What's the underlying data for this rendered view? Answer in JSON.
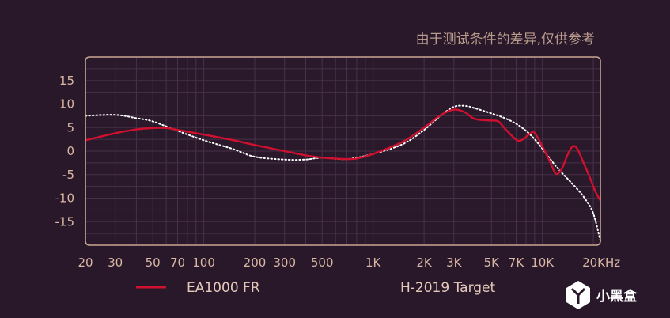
{
  "disclaimer": "由于测试条件的差异,仅供参考",
  "watermark": {
    "text": "小黑盒",
    "icon": "xiaoheihe-logo-icon"
  },
  "colors": {
    "background": "#281829",
    "plot_bg": "#2a192b",
    "frame": "#c9a694",
    "grid": "#47314a",
    "ea1000": "#d0102e",
    "target": "#ffffff",
    "text": "#d9b7a4"
  },
  "chart_data": {
    "type": "line",
    "title": "",
    "xlabel": "",
    "ylabel": "",
    "x_scale": "log",
    "xlim": [
      20,
      22000
    ],
    "ylim": [
      -20,
      20
    ],
    "x_ticks": [
      {
        "value": 20,
        "label": "20"
      },
      {
        "value": 30,
        "label": "30"
      },
      {
        "value": 50,
        "label": "50"
      },
      {
        "value": 70,
        "label": "70"
      },
      {
        "value": 100,
        "label": "100"
      },
      {
        "value": 200,
        "label": "200"
      },
      {
        "value": 300,
        "label": "300"
      },
      {
        "value": 500,
        "label": "500"
      },
      {
        "value": 1000,
        "label": "1K"
      },
      {
        "value": 2000,
        "label": "2K"
      },
      {
        "value": 3000,
        "label": "3K"
      },
      {
        "value": 5000,
        "label": "5K"
      },
      {
        "value": 7000,
        "label": "7K"
      },
      {
        "value": 10000,
        "label": "10K"
      },
      {
        "value": 20000,
        "label": "20KHz"
      }
    ],
    "y_ticks": [
      {
        "value": 15,
        "label": "15"
      },
      {
        "value": 10,
        "label": "10"
      },
      {
        "value": 5,
        "label": "5"
      },
      {
        "value": 0,
        "label": "0"
      },
      {
        "value": -5,
        "label": "-5"
      },
      {
        "value": -10,
        "label": "-10"
      },
      {
        "value": -15,
        "label": "-15"
      }
    ],
    "grid": true,
    "legend_position": "bottom",
    "series": [
      {
        "name": "EA1000 FR",
        "color": "#d0102e",
        "style": "solid",
        "points": [
          [
            20,
            2.3
          ],
          [
            30,
            3.8
          ],
          [
            40,
            4.6
          ],
          [
            50,
            4.9
          ],
          [
            60,
            4.9
          ],
          [
            70,
            4.5
          ],
          [
            100,
            3.5
          ],
          [
            150,
            2.3
          ],
          [
            200,
            1.3
          ],
          [
            300,
            0
          ],
          [
            400,
            -0.9
          ],
          [
            500,
            -1.4
          ],
          [
            600,
            -1.6
          ],
          [
            700,
            -1.7
          ],
          [
            800,
            -1.6
          ],
          [
            1000,
            -0.6
          ],
          [
            1500,
            2
          ],
          [
            2000,
            5
          ],
          [
            2500,
            7.6
          ],
          [
            3000,
            8.8
          ],
          [
            3500,
            8.2
          ],
          [
            4000,
            6.8
          ],
          [
            5000,
            6.5
          ],
          [
            5500,
            6.3
          ],
          [
            6000,
            4.8
          ],
          [
            7000,
            2.4
          ],
          [
            7500,
            2.3
          ],
          [
            8000,
            3
          ],
          [
            8500,
            3.8
          ],
          [
            9000,
            3.9
          ],
          [
            10000,
            1
          ],
          [
            11000,
            -2
          ],
          [
            12000,
            -4.8
          ],
          [
            13000,
            -3.8
          ],
          [
            14000,
            -1
          ],
          [
            15000,
            0.9
          ],
          [
            16000,
            0.6
          ],
          [
            17500,
            -2.5
          ],
          [
            19000,
            -5.5
          ],
          [
            20500,
            -8.5
          ],
          [
            22000,
            -10.5
          ]
        ]
      },
      {
        "name": "H-2019 Target",
        "color": "#ffffff",
        "style": "dotted",
        "points": [
          [
            20,
            7.5
          ],
          [
            30,
            7.7
          ],
          [
            40,
            7
          ],
          [
            50,
            6.3
          ],
          [
            70,
            4.3
          ],
          [
            100,
            2.3
          ],
          [
            150,
            0.4
          ],
          [
            200,
            -1.2
          ],
          [
            300,
            -1.8
          ],
          [
            400,
            -1.8
          ],
          [
            500,
            -1.4
          ],
          [
            700,
            -1.7
          ],
          [
            1000,
            -0.6
          ],
          [
            1500,
            1.5
          ],
          [
            2000,
            4.5
          ],
          [
            2500,
            7.5
          ],
          [
            3000,
            9.4
          ],
          [
            3500,
            9.6
          ],
          [
            4000,
            9.1
          ],
          [
            5000,
            8
          ],
          [
            6000,
            7
          ],
          [
            7000,
            5.8
          ],
          [
            8000,
            4.3
          ],
          [
            9000,
            2.5
          ],
          [
            10000,
            0.5
          ],
          [
            12000,
            -3.2
          ],
          [
            14000,
            -5.8
          ],
          [
            16000,
            -8
          ],
          [
            18000,
            -10.3
          ],
          [
            20000,
            -13.3
          ],
          [
            22000,
            -19
          ]
        ]
      }
    ]
  }
}
